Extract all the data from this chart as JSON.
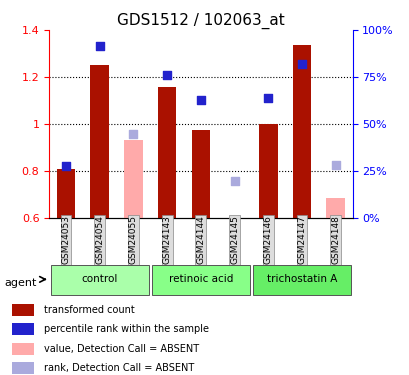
{
  "title": "GDS1512 / 102063_at",
  "samples": [
    "GSM24053",
    "GSM24054",
    "GSM24055",
    "GSM24143",
    "GSM24144",
    "GSM24145",
    "GSM24146",
    "GSM24147",
    "GSM24148"
  ],
  "groups": [
    {
      "label": "control",
      "samples": [
        "GSM24053",
        "GSM24054",
        "GSM24055"
      ],
      "color": "#aaffaa"
    },
    {
      "label": "retinoic acid",
      "samples": [
        "GSM24143",
        "GSM24144",
        "GSM24145"
      ],
      "color": "#88ff88"
    },
    {
      "label": "trichostatin A",
      "samples": [
        "GSM24146",
        "GSM24147",
        "GSM24148"
      ],
      "color": "#66ee66"
    }
  ],
  "bar_values": [
    0.805,
    1.25,
    null,
    1.155,
    0.975,
    null,
    1.0,
    1.335,
    null
  ],
  "bar_absent_values": [
    null,
    null,
    0.93,
    null,
    null,
    null,
    null,
    null,
    0.685
  ],
  "rank_values": [
    0.82,
    1.33,
    null,
    1.21,
    1.1,
    null,
    1.11,
    1.255,
    null
  ],
  "rank_absent_values": [
    null,
    null,
    0.955,
    null,
    null,
    0.755,
    null,
    null,
    0.825
  ],
  "bar_color": "#aa1100",
  "bar_absent_color": "#ffaaaa",
  "rank_color": "#2222cc",
  "rank_absent_color": "#aaaadd",
  "ylim": [
    0.6,
    1.4
  ],
  "yticks": [
    0.6,
    0.8,
    1.0,
    1.2,
    1.4
  ],
  "ytick_labels": [
    "0.6",
    "0.8",
    "1",
    "1.2",
    "1.4"
  ],
  "right_yticks": [
    0,
    25,
    50,
    75,
    100
  ],
  "right_ytick_labels": [
    "0%",
    "25%",
    "50%",
    "75%",
    "100%"
  ],
  "bar_width": 0.55,
  "legend_items": [
    {
      "label": "transformed count",
      "color": "#aa1100"
    },
    {
      "label": "percentile rank within the sample",
      "color": "#2222cc"
    },
    {
      "label": "value, Detection Call = ABSENT",
      "color": "#ffaaaa"
    },
    {
      "label": "rank, Detection Call = ABSENT",
      "color": "#aaaadd"
    }
  ]
}
